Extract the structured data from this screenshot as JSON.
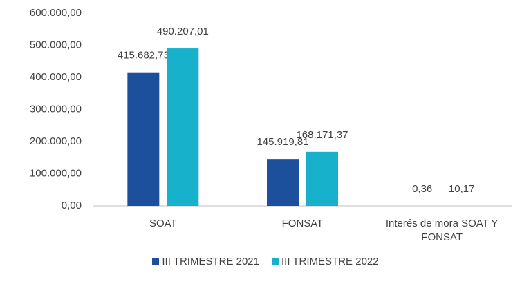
{
  "chart_data": {
    "type": "bar",
    "categories": [
      "SOAT",
      "FONSAT",
      "Interés de mora SOAT Y FONSAT"
    ],
    "series": [
      {
        "name": "III TRIMESTRE 2021",
        "color": "#1c4f9c",
        "values": [
          415682.73,
          145919.81,
          0.36
        ],
        "value_labels": [
          "415.682,73",
          "145.919,81",
          "0,36"
        ]
      },
      {
        "name": "III TRIMESTRE 2022",
        "color": "#17b1cb",
        "values": [
          490207.01,
          168171.37,
          10.17
        ],
        "value_labels": [
          "490.207,01",
          "168.171,37",
          "10,17"
        ]
      }
    ],
    "ylim": [
      0,
      600000
    ],
    "yticks": [
      {
        "value": 0,
        "label": "0,00"
      },
      {
        "value": 100000,
        "label": "100.000,00"
      },
      {
        "value": 200000,
        "label": "200.000,00"
      },
      {
        "value": 300000,
        "label": "300.000,00"
      },
      {
        "value": 400000,
        "label": "400.000,00"
      },
      {
        "value": 500000,
        "label": "500.000,00"
      },
      {
        "value": 600000,
        "label": "600.000,00"
      }
    ],
    "grid": false,
    "legend": "bottom"
  }
}
